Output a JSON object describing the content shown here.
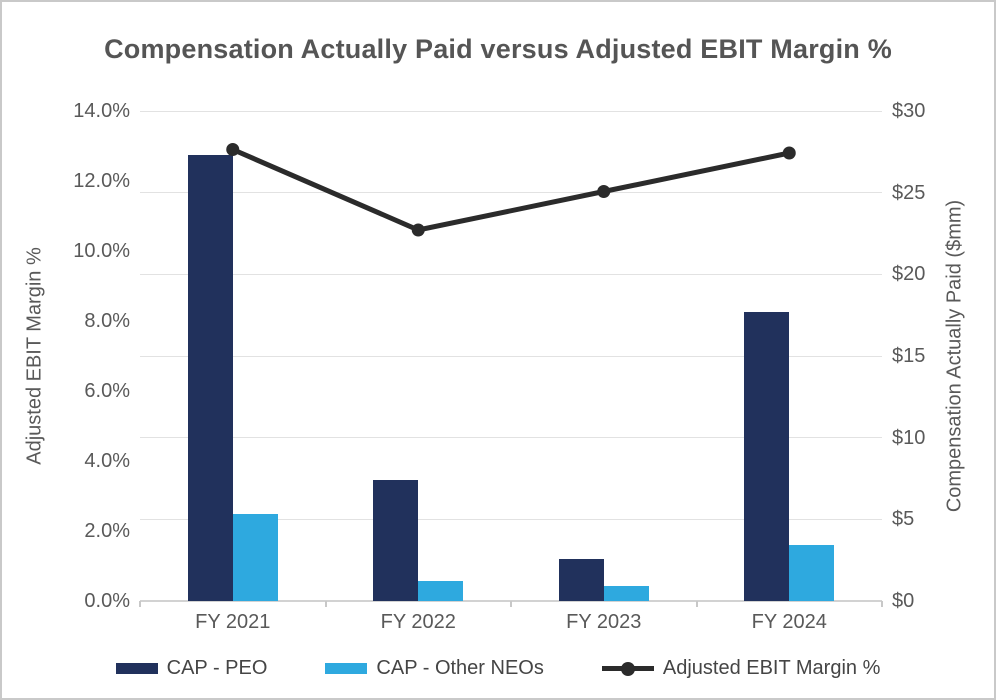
{
  "title": "Compensation Actually Paid versus Adjusted EBIT Margin %",
  "chart_data": {
    "type": "combo-bar-line",
    "categories": [
      "FY 2021",
      "FY 2022",
      "FY 2023",
      "FY 2024"
    ],
    "series": [
      {
        "name": "CAP - PEO",
        "type": "bar",
        "axis": "right",
        "color": "#21315C",
        "values": [
          27.3,
          7.4,
          2.6,
          17.7
        ]
      },
      {
        "name": "CAP - Other NEOs",
        "type": "bar",
        "axis": "right",
        "color": "#2EA9DF",
        "values": [
          5.3,
          1.2,
          0.9,
          3.4
        ]
      },
      {
        "name": "Adjusted EBIT Margin %",
        "type": "line",
        "axis": "left",
        "color": "#2B2B2B",
        "values": [
          12.9,
          10.6,
          11.7,
          12.8
        ]
      }
    ],
    "left_axis": {
      "title": "Adjusted EBIT Margin %",
      "min": 0,
      "max": 14,
      "step": 2,
      "tick_labels": [
        "0.0%",
        "2.0%",
        "4.0%",
        "6.0%",
        "8.0%",
        "10.0%",
        "12.0%",
        "14.0%"
      ]
    },
    "right_axis": {
      "title": "Compensation Actually Paid ($mm)",
      "min": 0,
      "max": 30,
      "step": 5,
      "tick_labels": [
        "$0",
        "$5",
        "$10",
        "$15",
        "$20",
        "$25",
        "$30"
      ]
    },
    "gridlines": {
      "orientation": "horizontal",
      "aligned_to": "right_axis",
      "color": "#E2E2E2"
    },
    "legend_position": "bottom"
  },
  "legend": {
    "items": [
      {
        "label": "CAP - PEO",
        "swatch": "bar",
        "color": "#21315C"
      },
      {
        "label": "CAP - Other NEOs",
        "swatch": "bar",
        "color": "#2EA9DF"
      },
      {
        "label": "Adjusted EBIT Margin %",
        "swatch": "line-marker",
        "color": "#2B2B2B"
      }
    ]
  }
}
